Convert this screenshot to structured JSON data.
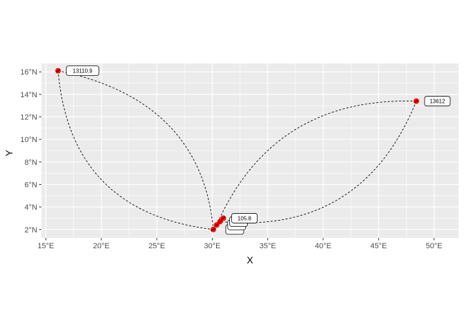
{
  "chart_data": {
    "type": "scatter",
    "xlabel": "X",
    "ylabel": "Y",
    "xlim": [
      14.6,
      52.2
    ],
    "ylim": [
      1.25,
      16.75
    ],
    "x_ticks": [
      15,
      20,
      25,
      30,
      35,
      40,
      45,
      50
    ],
    "x_tick_labels": [
      "15°E",
      "20°E",
      "25°E",
      "30°E",
      "35°E",
      "40°E",
      "45°E",
      "50°E"
    ],
    "y_ticks": [
      2,
      4,
      6,
      8,
      10,
      12,
      14,
      16
    ],
    "y_tick_labels": [
      "2°N",
      "4°N",
      "6°N",
      "8°N",
      "10°N",
      "12°N",
      "14°N",
      "16°N"
    ],
    "grid": true,
    "colors": {
      "panel": "#ebebeb",
      "grid": "#ffffff",
      "point": "#ff0000",
      "curve": "#000000"
    },
    "points": [
      {
        "x": 16.1,
        "y": 16.1
      },
      {
        "x": 48.4,
        "y": 13.4
      },
      {
        "x": 30.1,
        "y": 2.0
      },
      {
        "x": 30.4,
        "y": 2.4
      },
      {
        "x": 30.7,
        "y": 2.7
      },
      {
        "x": 31.0,
        "y": 3.0
      }
    ],
    "labels": [
      {
        "text": "13110.9",
        "x": 16.1,
        "y": 16.1
      },
      {
        "text": "13612",
        "x": 48.4,
        "y": 13.4
      },
      {
        "text": "",
        "x": 30.1,
        "y": 2.0
      },
      {
        "text": "",
        "x": 30.4,
        "y": 2.4
      },
      {
        "text": "",
        "x": 30.7,
        "y": 2.7
      },
      {
        "text": "105.8",
        "x": 31.0,
        "y": 3.0
      }
    ],
    "curves": [
      {
        "from": [
          16.1,
          16.1
        ],
        "to": [
          30.1,
          2.0
        ],
        "control": [
          29.0,
          13.5
        ]
      },
      {
        "from": [
          16.1,
          16.1
        ],
        "to": [
          30.1,
          2.0
        ],
        "control": [
          17.2,
          3.5
        ]
      },
      {
        "from": [
          48.4,
          13.4
        ],
        "to": [
          30.4,
          2.4
        ],
        "control": [
          35.5,
          13.8
        ]
      },
      {
        "from": [
          48.4,
          13.4
        ],
        "to": [
          30.7,
          2.7
        ],
        "control": [
          43.5,
          1.5
        ]
      }
    ]
  }
}
